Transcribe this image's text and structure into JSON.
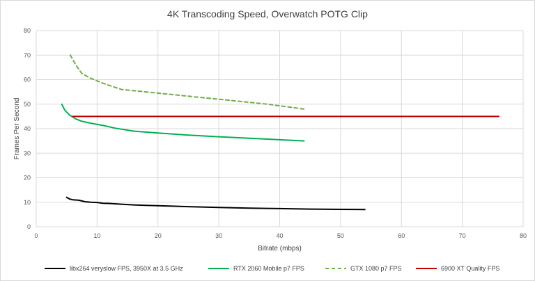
{
  "chart_data": {
    "type": "line",
    "title": "4K Transcoding Speed, Overwatch POTG Clip",
    "xlabel": "Bitrate (mbps)",
    "ylabel": "Frames Per Second",
    "xlim": [
      0,
      80
    ],
    "ylim": [
      0,
      80
    ],
    "x_ticks": [
      0,
      10,
      20,
      30,
      40,
      50,
      60,
      70,
      80
    ],
    "y_ticks": [
      0,
      10,
      20,
      30,
      40,
      50,
      60,
      70,
      80
    ],
    "grid": true,
    "legend_position": "bottom",
    "series": [
      {
        "name": "libx264 veryslow FPS, 3950X at 3.5 GHz",
        "color": "#000000",
        "dash": "solid",
        "x": [
          5,
          5.5,
          6,
          7,
          8,
          9,
          10,
          11,
          12,
          14,
          16,
          18,
          20,
          25,
          30,
          35,
          40,
          45,
          50,
          54
        ],
        "y": [
          12,
          11.3,
          11,
          10.8,
          10.2,
          10,
          9.9,
          9.6,
          9.5,
          9.2,
          8.9,
          8.7,
          8.6,
          8.2,
          7.9,
          7.6,
          7.4,
          7.2,
          7.1,
          7.0
        ]
      },
      {
        "name": "RTX 2060 Mobile p7 FPS",
        "color": "#00b050",
        "dash": "solid",
        "x": [
          4.2,
          4.7,
          5.5,
          6.5,
          7.5,
          9,
          11,
          13,
          16,
          20,
          25,
          30,
          35,
          40,
          44
        ],
        "y": [
          50,
          47.5,
          45.5,
          44,
          43,
          42.2,
          41.3,
          40.2,
          39,
          38.2,
          37.4,
          36.7,
          36.1,
          35.5,
          35
        ]
      },
      {
        "name": "GTX 1080 p7 FPS",
        "color": "#70ad47",
        "dash": "dashed",
        "x": [
          5.6,
          6.5,
          7.5,
          9,
          11,
          14,
          18,
          22,
          26,
          30,
          34,
          38,
          41,
          44
        ],
        "y": [
          70,
          66,
          62.5,
          60.5,
          58.5,
          56,
          55,
          54,
          53,
          52,
          51,
          50,
          49,
          48
        ]
      },
      {
        "name": "6900 XT Quality FPS",
        "color": "#c00000",
        "dash": "solid",
        "x": [
          6,
          76
        ],
        "y": [
          45,
          45
        ]
      }
    ]
  }
}
